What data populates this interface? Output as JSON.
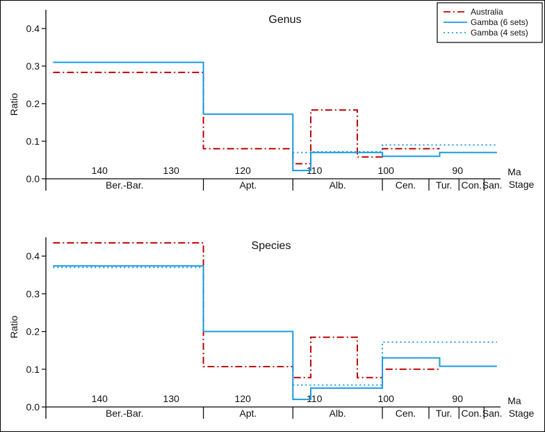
{
  "colors": {
    "australia": "#c00000",
    "gamba6": "#1a9ae0",
    "gamba4": "#1a9ae0",
    "axis": "#000000"
  },
  "legend": {
    "position": "top-right",
    "entries": [
      {
        "key": "australia",
        "label": "Australia",
        "style": "dashdot"
      },
      {
        "key": "gamba6",
        "label": "Gamba (6 sets)",
        "style": "solid"
      },
      {
        "key": "gamba4",
        "label": "Gamba (4 sets)",
        "style": "dotted"
      }
    ]
  },
  "chart_data": [
    {
      "type": "line",
      "step": true,
      "title": "Genus",
      "ylabel": "Ratio",
      "xlabel": "Ma",
      "x_reversed": true,
      "xlim": [
        147.5,
        84
      ],
      "ylim": [
        0,
        0.45
      ],
      "x_ticks": [
        140,
        130,
        120,
        110,
        100,
        90
      ],
      "y_ticks": [
        0.0,
        0.1,
        0.2,
        0.3,
        0.4
      ],
      "stage_label": "Stage",
      "stages": [
        {
          "name": "Ber.-Bar.",
          "from": 147.5,
          "to": 125.5
        },
        {
          "name": "Apt.",
          "from": 125.5,
          "to": 113
        },
        {
          "name": "Alb.",
          "from": 113,
          "to": 100.5
        },
        {
          "name": "Cen.",
          "from": 100.5,
          "to": 94
        },
        {
          "name": "Tur.",
          "from": 94,
          "to": 89.8
        },
        {
          "name": "Con.",
          "from": 89.8,
          "to": 86.3
        },
        {
          "name": "San.",
          "from": 86.3,
          "to": 84
        }
      ],
      "series": [
        {
          "key": "australia",
          "name": "Australia",
          "steps": [
            {
              "from": 146.5,
              "to": 125.5,
              "y": 0.283
            },
            {
              "from": 125.5,
              "to": 113,
              "y": 0.08
            },
            {
              "from": 113,
              "to": 110.5,
              "y": 0.04
            },
            {
              "from": 110.5,
              "to": 104,
              "y": 0.183
            },
            {
              "from": 104,
              "to": 100.5,
              "y": 0.058
            },
            {
              "from": 100.5,
              "to": 92.5,
              "y": 0.08
            }
          ]
        },
        {
          "key": "gamba6",
          "name": "Gamba (6 sets)",
          "steps": [
            {
              "from": 146.5,
              "to": 125.5,
              "y": 0.31
            },
            {
              "from": 125.5,
              "to": 113,
              "y": 0.172
            },
            {
              "from": 113,
              "to": 110.5,
              "y": 0.022
            },
            {
              "from": 110.5,
              "to": 100.5,
              "y": 0.07
            },
            {
              "from": 100.5,
              "to": 92.5,
              "y": 0.06
            },
            {
              "from": 92.5,
              "to": 84.5,
              "y": 0.07
            }
          ]
        },
        {
          "key": "gamba4",
          "name": "Gamba (4 sets)",
          "steps": [
            {
              "from": 113,
              "to": 110.5,
              "y": 0.07
            },
            {
              "from": 110.5,
              "to": 100.5,
              "y": 0.072
            },
            {
              "from": 100.5,
              "to": 84.5,
              "y": 0.09
            }
          ]
        }
      ]
    },
    {
      "type": "line",
      "step": true,
      "title": "Species",
      "ylabel": "Ratio",
      "xlabel": "Ma",
      "x_reversed": true,
      "xlim": [
        147.5,
        84
      ],
      "ylim": [
        0,
        0.45
      ],
      "x_ticks": [
        140,
        130,
        120,
        110,
        100,
        90
      ],
      "y_ticks": [
        0.0,
        0.1,
        0.2,
        0.3,
        0.4
      ],
      "stage_label": "Stage",
      "stages": [
        {
          "name": "Ber.-Bar.",
          "from": 147.5,
          "to": 125.5
        },
        {
          "name": "Apt.",
          "from": 125.5,
          "to": 113
        },
        {
          "name": "Alb.",
          "from": 113,
          "to": 100.5
        },
        {
          "name": "Cen.",
          "from": 100.5,
          "to": 94
        },
        {
          "name": "Tur.",
          "from": 94,
          "to": 89.8
        },
        {
          "name": "Con.",
          "from": 89.8,
          "to": 86.3
        },
        {
          "name": "San.",
          "from": 86.3,
          "to": 84
        }
      ],
      "series": [
        {
          "key": "australia",
          "name": "Australia",
          "steps": [
            {
              "from": 146.5,
              "to": 125.5,
              "y": 0.435
            },
            {
              "from": 125.5,
              "to": 113,
              "y": 0.107
            },
            {
              "from": 113,
              "to": 110.5,
              "y": 0.078
            },
            {
              "from": 110.5,
              "to": 104,
              "y": 0.185
            },
            {
              "from": 104,
              "to": 100.5,
              "y": 0.078
            },
            {
              "from": 100.5,
              "to": 92.5,
              "y": 0.1
            }
          ]
        },
        {
          "key": "gamba6",
          "name": "Gamba (6 sets)",
          "steps": [
            {
              "from": 146.5,
              "to": 125.5,
              "y": 0.374
            },
            {
              "from": 125.5,
              "to": 113,
              "y": 0.2
            },
            {
              "from": 113,
              "to": 110.5,
              "y": 0.02
            },
            {
              "from": 110.5,
              "to": 100.5,
              "y": 0.05
            },
            {
              "from": 100.5,
              "to": 92.5,
              "y": 0.13
            },
            {
              "from": 92.5,
              "to": 84.5,
              "y": 0.108
            }
          ]
        },
        {
          "key": "gamba4",
          "name": "Gamba (4 sets)",
          "steps": [
            {
              "from": 146.5,
              "to": 125.5,
              "y": 0.37
            },
            {
              "from": 113,
              "to": 100.5,
              "y": 0.058
            },
            {
              "from": 100.5,
              "to": 84.5,
              "y": 0.172
            }
          ]
        }
      ]
    }
  ]
}
